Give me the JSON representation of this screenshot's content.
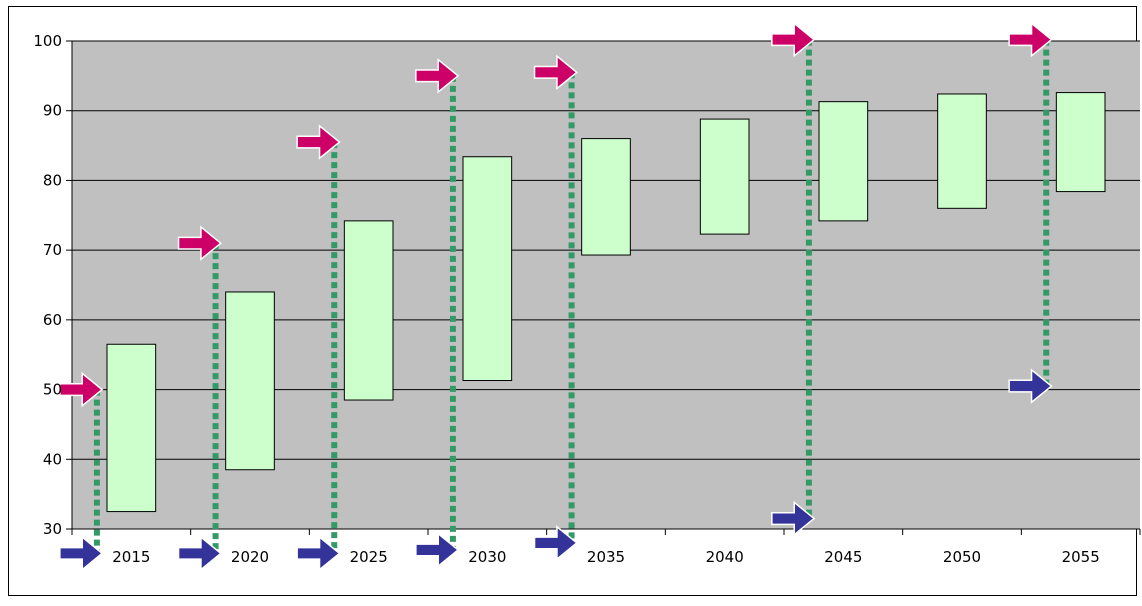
{
  "chart_data": {
    "type": "bar",
    "subtype": "floating-range",
    "categories": [
      "2015",
      "2020",
      "2025",
      "2030",
      "2035",
      "2040",
      "2045",
      "2050",
      "2055"
    ],
    "ranges": [
      [
        32.5,
        56.5
      ],
      [
        38.5,
        64.0
      ],
      [
        48.5,
        74.2
      ],
      [
        51.3,
        83.4
      ],
      [
        69.3,
        86.0
      ],
      [
        72.3,
        88.8
      ],
      [
        74.2,
        91.3
      ],
      [
        76.0,
        92.4
      ],
      [
        78.4,
        92.6
      ]
    ],
    "y_ticks": [
      "30",
      "40",
      "50",
      "60",
      "70",
      "80",
      "90",
      "100"
    ],
    "ylim": [
      30,
      100
    ],
    "grid": true,
    "markers": [
      {
        "category": "2015",
        "upper": 50,
        "lower": 26.5
      },
      {
        "category": "2020",
        "upper": 71,
        "lower": 26.5
      },
      {
        "category": "2025",
        "upper": 85.5,
        "lower": 26.5
      },
      {
        "category": "2030",
        "upper": 95,
        "lower": 27
      },
      {
        "category": "2035",
        "upper": 95.5,
        "lower": 28
      },
      {
        "category": "2045",
        "upper": 100.2,
        "lower": 31.5
      },
      {
        "category": "2055",
        "upper": 100.2,
        "lower": 50.5
      }
    ],
    "colors": {
      "plot_background": "#c0c0c0",
      "bar_fill": "#ccffcc",
      "bar_border": "#000000",
      "upper_arrow": "#cc0066",
      "lower_arrow": "#333399",
      "connector": "#339966",
      "gridline": "#000000"
    }
  }
}
